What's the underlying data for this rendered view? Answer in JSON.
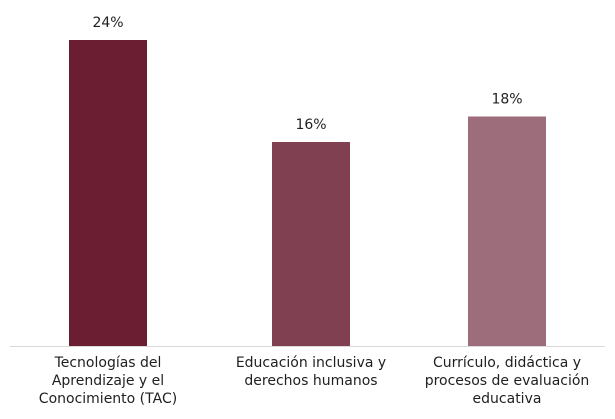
{
  "chart_data": {
    "type": "bar",
    "categories": [
      "Tecnologías del Aprendizaje y el Conocimiento (TAC)",
      "Educación inclusiva y derechos humanos",
      "Currículo, didáctica y procesos de evaluación educativa"
    ],
    "category_lines": [
      "Tecnologías del\nAprendizaje y el\nConocimiento (TAC)",
      "Educación inclusiva y\nderechos humanos",
      "Currículo, didáctica y\nprocesos de evaluación\neducativa"
    ],
    "values": [
      24,
      16,
      18
    ],
    "value_labels": [
      "24%",
      "16%",
      "18%"
    ],
    "ylim": [
      0,
      24
    ],
    "grid": false,
    "bar_colors": [
      "#6b1d31",
      "#813f52",
      "#9e6d7b"
    ],
    "axis_color": "#d9d9d9"
  }
}
